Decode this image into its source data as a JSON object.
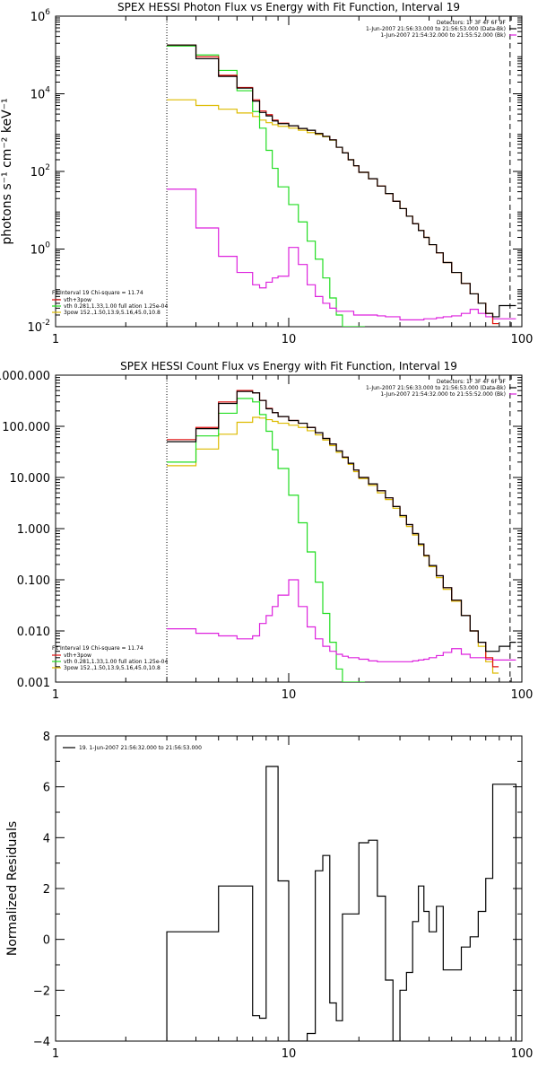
{
  "chart_data": [
    {
      "type": "line",
      "title": "SPEX HESSI Photon Flux vs Energy with Fit Function, Interval 19",
      "ylabel": "photons s⁻¹ cm⁻² keV⁻¹",
      "xlabel": "",
      "xscale": "log",
      "yscale": "log",
      "xlim": [
        1,
        100
      ],
      "ylim": [
        0.01,
        1000000
      ],
      "x_ticks": [
        {
          "v": 1,
          "label": "1"
        },
        {
          "v": 10,
          "label": "10"
        },
        {
          "v": 100,
          "label": "100"
        }
      ],
      "y_ticks": [
        {
          "v": 0.01,
          "base": "10",
          "exp": "-2"
        },
        {
          "v": 1,
          "base": "10",
          "exp": "0"
        },
        {
          "v": 100,
          "base": "10",
          "exp": "2"
        },
        {
          "v": 10000,
          "base": "10",
          "exp": "4"
        },
        {
          "v": 1000000,
          "base": "10",
          "exp": "6"
        }
      ],
      "vlines": [
        {
          "x": 3,
          "style": "dotted"
        },
        {
          "x": 89,
          "style": "dashed"
        }
      ],
      "legend_top": [
        "Detectors: 1F 3F 4F 6F 9F",
        "1-Jun-2007 21:56:33.000 to 21:56:53.000 (Data-Bk)",
        "1-Jun-2007 21:54:32.000 to 21:55:52.000 (Bk)"
      ],
      "legend_bottom_title": "Fit Interval 19   Chi-square = 11.74",
      "legend_bottom": [
        "vth+3pow",
        "vth 0.281,1.33,1.00  full ation 1.25e-04",
        "3pow 152.,1.50,13.9,5.16,45.0,10.8"
      ],
      "series": [
        {
          "name": "Data-Bk",
          "color": "#000000",
          "x": [
            3,
            4,
            5,
            6,
            7,
            7.5,
            8,
            8.5,
            9,
            10,
            11,
            12,
            13,
            14,
            15,
            16,
            17,
            18,
            19,
            20,
            22,
            24,
            26,
            28,
            30,
            32,
            34,
            36,
            38,
            40,
            43,
            46,
            50,
            55,
            60,
            65,
            70,
            75,
            80,
            89
          ],
          "y": [
            180000,
            80000,
            28000,
            14000,
            6500,
            3300,
            2700,
            2000,
            1700,
            1500,
            1280,
            1150,
            950,
            800,
            650,
            420,
            300,
            200,
            140,
            95,
            65,
            42,
            27,
            17,
            11,
            7,
            4.5,
            3,
            2,
            1.3,
            0.8,
            0.45,
            0.25,
            0.13,
            0.07,
            0.04,
            0.022,
            0.018,
            0.035,
            0.035
          ]
        },
        {
          "name": "vth+3pow",
          "color": "#e01010",
          "x": [
            3,
            4,
            5,
            6,
            7,
            7.5,
            8,
            8.5,
            9,
            10,
            11,
            12,
            13,
            14,
            15,
            16,
            17,
            18,
            19,
            20,
            22,
            24,
            26,
            28,
            30,
            32,
            34,
            36,
            38,
            40,
            43,
            46,
            50,
            55,
            60,
            65,
            70,
            75
          ],
          "y": [
            180000,
            90000,
            30000,
            14500,
            7000,
            3600,
            2900,
            2100,
            1750,
            1500,
            1280,
            1150,
            950,
            800,
            650,
            420,
            300,
            200,
            140,
            95,
            65,
            42,
            27,
            17,
            11,
            7,
            4.5,
            3,
            2,
            1.3,
            0.8,
            0.45,
            0.25,
            0.13,
            0.07,
            0.04,
            0.022,
            0.012
          ]
        },
        {
          "name": "vth",
          "color": "#22dd22",
          "x": [
            3,
            4,
            5,
            6,
            7,
            7.5,
            8,
            8.5,
            9,
            10,
            11,
            12,
            13,
            14,
            15,
            16,
            17,
            18,
            19,
            20
          ],
          "y": [
            170000,
            100000,
            40000,
            12000,
            3500,
            1300,
            350,
            120,
            40,
            14,
            5,
            1.6,
            0.55,
            0.18,
            0.055,
            0.02,
            0.01,
            0.01,
            0.01,
            0.01
          ]
        },
        {
          "name": "3pow",
          "color": "#ddbb00",
          "x": [
            3,
            4,
            5,
            6,
            7,
            7.5,
            8,
            8.5,
            9,
            10,
            11,
            12,
            13,
            14,
            15,
            16,
            17,
            18,
            19,
            20,
            22,
            24,
            26,
            28,
            30,
            32,
            34,
            36,
            38,
            40,
            43,
            46,
            50,
            55,
            60,
            65,
            70,
            75
          ],
          "y": [
            7000,
            5000,
            4000,
            3200,
            2600,
            2100,
            1800,
            1600,
            1450,
            1300,
            1150,
            1000,
            900,
            780,
            640,
            420,
            300,
            200,
            140,
            95,
            65,
            42,
            27,
            17,
            11,
            7,
            4.5,
            3,
            2,
            1.3,
            0.8,
            0.45,
            0.25,
            0.13,
            0.07,
            0.04,
            0.022,
            0.012
          ]
        },
        {
          "name": "Bk",
          "color": "#dd22dd",
          "x": [
            3,
            4,
            5,
            6,
            7,
            7.5,
            8,
            8.5,
            9,
            10,
            11,
            12,
            13,
            14,
            15,
            16,
            17,
            18,
            19,
            20,
            22,
            24,
            26,
            28,
            30,
            32,
            34,
            36,
            38,
            40,
            43,
            46,
            50,
            55,
            60,
            65,
            70,
            75,
            80,
            89
          ],
          "y": [
            35,
            3.5,
            0.65,
            0.25,
            0.12,
            0.1,
            0.14,
            0.18,
            0.2,
            1.1,
            0.4,
            0.12,
            0.06,
            0.04,
            0.03,
            0.025,
            0.025,
            0.025,
            0.02,
            0.02,
            0.02,
            0.019,
            0.018,
            0.018,
            0.015,
            0.015,
            0.015,
            0.015,
            0.016,
            0.016,
            0.017,
            0.018,
            0.019,
            0.022,
            0.028,
            0.022,
            0.018,
            0.016,
            0.016,
            0.016
          ]
        }
      ]
    },
    {
      "type": "line",
      "title": "SPEX HESSI Count Flux vs Energy with Fit Function, Interval 19",
      "ylabel": "",
      "xlabel": "",
      "xscale": "log",
      "yscale": "log",
      "xlim": [
        1,
        100
      ],
      "ylim": [
        0.001,
        1000
      ],
      "x_ticks": [
        {
          "v": 1,
          "label": "1"
        },
        {
          "v": 10,
          "label": "10"
        },
        {
          "v": 100,
          "label": "100"
        }
      ],
      "y_ticks": [
        {
          "v": 0.001,
          "label": "0.001"
        },
        {
          "v": 0.01,
          "label": "0.010"
        },
        {
          "v": 0.1,
          "label": "0.100"
        },
        {
          "v": 1,
          "label": "1.000"
        },
        {
          "v": 10,
          "label": "10.000"
        },
        {
          "v": 100,
          "label": "100.000"
        },
        {
          "v": 1000,
          "label": "1000.000"
        }
      ],
      "vlines": [
        {
          "x": 3,
          "style": "dotted"
        },
        {
          "x": 89,
          "style": "dashed"
        }
      ],
      "legend_top": [
        "Detectors: 1F 3F 4F 6F 9F",
        "1-Jun-2007 21:56:33.000 to 21:56:53.000 (Data-Bk)",
        "1-Jun-2007 21:54:32.000 to 21:55:52.000 (Bk)"
      ],
      "legend_bottom_title": "Fit Interval 19   Chi-square = 11.74",
      "legend_bottom": [
        "vth+3pow",
        "vth 0.281,1.33,1.00  full ation 1.25e-04",
        "3pow 152.,1.50,13.9,5.16,45.0,10.8"
      ],
      "series": [
        {
          "name": "Data-Bk",
          "color": "#000000",
          "x": [
            3,
            4,
            5,
            6,
            7,
            7.5,
            8,
            8.5,
            9,
            10,
            11,
            12,
            13,
            14,
            15,
            16,
            17,
            18,
            19,
            20,
            22,
            24,
            26,
            28,
            30,
            32,
            34,
            36,
            38,
            40,
            43,
            46,
            50,
            55,
            60,
            65,
            70,
            75,
            80,
            89
          ],
          "y": [
            50,
            90,
            280,
            480,
            450,
            320,
            220,
            185,
            155,
            130,
            115,
            95,
            75,
            58,
            45,
            33,
            25,
            19,
            14,
            10,
            7.5,
            5.5,
            4,
            2.7,
            1.8,
            1.2,
            0.8,
            0.5,
            0.3,
            0.19,
            0.12,
            0.07,
            0.04,
            0.02,
            0.01,
            0.006,
            0.004,
            0.004,
            0.005,
            0.006
          ]
        },
        {
          "name": "vth+3pow",
          "color": "#e01010",
          "x": [
            3,
            4,
            5,
            6,
            7,
            7.5,
            8,
            8.5,
            9,
            10,
            11,
            12,
            13,
            14,
            15,
            16,
            17,
            18,
            19,
            20,
            22,
            24,
            26,
            28,
            30,
            32,
            34,
            36,
            38,
            40,
            43,
            46,
            50,
            55,
            60,
            65,
            70,
            75
          ],
          "y": [
            55,
            95,
            300,
            500,
            450,
            320,
            225,
            185,
            155,
            130,
            115,
            95,
            75,
            58,
            45,
            33,
            25,
            19,
            14,
            10,
            7.5,
            5.5,
            4,
            2.7,
            1.8,
            1.2,
            0.8,
            0.5,
            0.3,
            0.19,
            0.12,
            0.07,
            0.04,
            0.02,
            0.01,
            0.006,
            0.003,
            0.002
          ]
        },
        {
          "name": "vth",
          "color": "#22dd22",
          "x": [
            3,
            4,
            5,
            6,
            7,
            7.5,
            8,
            8.5,
            9,
            10,
            11,
            12,
            13,
            14,
            15,
            16,
            17,
            18,
            19,
            20
          ],
          "y": [
            20,
            65,
            180,
            350,
            300,
            170,
            80,
            35,
            15,
            4.5,
            1.3,
            0.35,
            0.09,
            0.022,
            0.006,
            0.0018,
            0.001,
            0.001,
            0.001,
            0.001
          ]
        },
        {
          "name": "3pow",
          "color": "#ddbb00",
          "x": [
            3,
            4,
            5,
            6,
            7,
            7.5,
            8,
            8.5,
            9,
            10,
            11,
            12,
            13,
            14,
            15,
            16,
            17,
            18,
            19,
            20,
            22,
            24,
            26,
            28,
            30,
            32,
            34,
            36,
            38,
            40,
            43,
            46,
            50,
            55,
            60,
            65,
            70,
            75
          ],
          "y": [
            17,
            36,
            70,
            120,
            150,
            145,
            135,
            125,
            115,
            105,
            95,
            82,
            68,
            54,
            42,
            31,
            24,
            18,
            13,
            9.5,
            7,
            5,
            3.7,
            2.5,
            1.7,
            1.1,
            0.75,
            0.47,
            0.29,
            0.18,
            0.11,
            0.065,
            0.038,
            0.02,
            0.01,
            0.005,
            0.0025,
            0.0015
          ]
        },
        {
          "name": "Bk",
          "color": "#dd22dd",
          "x": [
            3,
            4,
            5,
            6,
            7,
            7.5,
            8,
            8.5,
            9,
            10,
            11,
            12,
            13,
            14,
            15,
            16,
            17,
            18,
            19,
            20,
            22,
            24,
            26,
            28,
            30,
            32,
            34,
            36,
            38,
            40,
            43,
            46,
            50,
            55,
            60,
            65,
            70,
            75,
            80,
            89
          ],
          "y": [
            0.011,
            0.009,
            0.008,
            0.007,
            0.008,
            0.014,
            0.02,
            0.03,
            0.05,
            0.1,
            0.03,
            0.012,
            0.007,
            0.005,
            0.004,
            0.0035,
            0.0032,
            0.003,
            0.003,
            0.0028,
            0.0026,
            0.0025,
            0.0025,
            0.0025,
            0.0025,
            0.0025,
            0.0026,
            0.0027,
            0.0028,
            0.003,
            0.0033,
            0.0038,
            0.0045,
            0.0035,
            0.003,
            0.003,
            0.0028,
            0.0027,
            0.0027,
            0.0027
          ]
        }
      ]
    },
    {
      "type": "line",
      "title": "",
      "ylabel": "Normalized Residuals",
      "xlabel": "",
      "xscale": "log",
      "yscale": "linear",
      "xlim": [
        1,
        100
      ],
      "ylim": [
        -4,
        8
      ],
      "x_ticks": [
        {
          "v": 1,
          "label": "1"
        },
        {
          "v": 10,
          "label": "10"
        },
        {
          "v": 100,
          "label": "100"
        }
      ],
      "y_ticks": [
        {
          "v": -4,
          "label": "−4"
        },
        {
          "v": -2,
          "label": "−2"
        },
        {
          "v": 0,
          "label": "0"
        },
        {
          "v": 2,
          "label": "2"
        },
        {
          "v": 4,
          "label": "4"
        },
        {
          "v": 6,
          "label": "6"
        },
        {
          "v": 8,
          "label": "8"
        }
      ],
      "legend_top": [
        "19.  1-Jun-2007 21:56:32.000 to 21:56:53.000"
      ],
      "series": [
        {
          "name": "19.  1-Jun-2007 21:56:32.000 to 21:56:53.000",
          "color": "#000000",
          "x": [
            3,
            4,
            5,
            6,
            7,
            7.5,
            8,
            9,
            10,
            11,
            12,
            13,
            14,
            15,
            16,
            17,
            18,
            20,
            22,
            24,
            26,
            28,
            30,
            32,
            34,
            36,
            38,
            40,
            43,
            46,
            50,
            55,
            60,
            65,
            70,
            75,
            80,
            89
          ],
          "y": [
            0.3,
            0.3,
            2.1,
            2.1,
            -3,
            -3.1,
            6.8,
            2.3,
            -4,
            -4,
            -3.7,
            2.7,
            3.3,
            -2.5,
            -3.2,
            1.0,
            1.0,
            3.8,
            3.9,
            1.7,
            -1.6,
            -4.1,
            -2,
            -1.3,
            0.7,
            2.1,
            1.1,
            0.3,
            1.3,
            -1.2,
            -1.2,
            -0.3,
            0.1,
            1.1,
            2.4,
            6.1,
            6.1,
            6.1
          ]
        }
      ]
    }
  ]
}
